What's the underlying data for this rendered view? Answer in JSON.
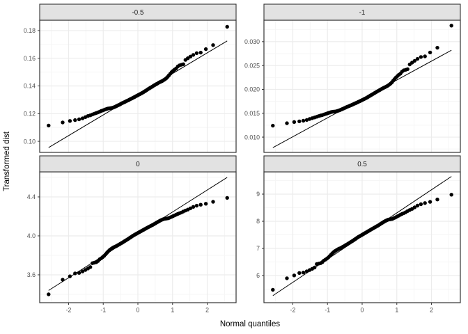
{
  "style": {
    "background": "#FFFFFF",
    "panel_background": "#FFFFFF",
    "panel_border": "#333333",
    "strip_background": "#E2E2E2",
    "strip_text_color": "#1A1A1A",
    "grid_major": "#ECECEC",
    "grid_minor": "#F5F5F5",
    "axis_text_color": "#4D4D4D",
    "axis_title_color": "#000000",
    "tick_color": "#333333",
    "point_color": "#000000",
    "line_color": "#000000"
  },
  "chart_data": {
    "type": "scatter",
    "subtype": "qq-plot-faceted",
    "title": "",
    "xlabel": "Normal quantiles",
    "ylabel": "Transformed dist",
    "legend": "none",
    "grid": "on",
    "xlim": [
      -2.833,
      2.833
    ],
    "xtick_values": [
      -2,
      -1,
      0,
      1,
      2
    ],
    "xtick_labels": [
      "-2",
      "-1",
      "0",
      "1",
      "2"
    ],
    "xminor": [
      -2.5,
      -1.5,
      -0.5,
      0.5,
      1.5,
      2.5
    ],
    "x": [
      -2.576,
      -2.17,
      -1.96,
      -1.812,
      -1.695,
      -1.598,
      -1.514,
      -1.44,
      -1.372,
      -1.311,
      -1.254,
      -1.2,
      -1.15,
      -1.103,
      -1.058,
      -1.015,
      -0.974,
      -0.935,
      -0.896,
      -0.86,
      -0.824,
      -0.789,
      -0.755,
      -0.722,
      -0.69,
      -0.659,
      -0.628,
      -0.598,
      -0.568,
      -0.539,
      -0.51,
      -0.482,
      -0.454,
      -0.426,
      -0.399,
      -0.372,
      -0.345,
      -0.319,
      -0.292,
      -0.266,
      -0.24,
      -0.215,
      -0.189,
      -0.164,
      -0.138,
      -0.113,
      -0.088,
      -0.063,
      -0.038,
      -0.013,
      0.013,
      0.038,
      0.063,
      0.088,
      0.113,
      0.138,
      0.164,
      0.189,
      0.215,
      0.24,
      0.266,
      0.292,
      0.319,
      0.345,
      0.372,
      0.399,
      0.426,
      0.454,
      0.482,
      0.51,
      0.539,
      0.568,
      0.598,
      0.628,
      0.659,
      0.69,
      0.722,
      0.755,
      0.789,
      0.824,
      0.86,
      0.896,
      0.935,
      0.974,
      1.015,
      1.058,
      1.103,
      1.15,
      1.2,
      1.254,
      1.311,
      1.372,
      1.44,
      1.514,
      1.598,
      1.695,
      1.812,
      1.96,
      2.17,
      2.576
    ],
    "panels": [
      {
        "label": "-0.5",
        "ylim": [
          0.092,
          0.1875
        ],
        "ytick_values": [
          0.1,
          0.12,
          0.14,
          0.16,
          0.18
        ],
        "ytick_labels": [
          "0.10",
          "0.12",
          "0.14",
          "0.16",
          "0.18"
        ],
        "yminor": [
          0.11,
          0.13,
          0.15,
          0.17
        ],
        "line": {
          "x1": -2.576,
          "y1": 0.0955,
          "x2": 2.576,
          "y2": 0.1725
        },
        "y": [
          0.1114,
          0.1136,
          0.1147,
          0.1153,
          0.1159,
          0.1166,
          0.1175,
          0.1183,
          0.1188,
          0.1194,
          0.12,
          0.1205,
          0.1209,
          0.1214,
          0.1219,
          0.1223,
          0.1227,
          0.1231,
          0.1234,
          0.1237,
          0.1238,
          0.1239,
          0.1241,
          0.1243,
          0.1246,
          0.1249,
          0.1253,
          0.1257,
          0.1261,
          0.1264,
          0.1268,
          0.1272,
          0.1276,
          0.1279,
          0.1282,
          0.1285,
          0.1289,
          0.1292,
          0.1295,
          0.1298,
          0.1302,
          0.1305,
          0.1308,
          0.1311,
          0.1315,
          0.1318,
          0.1321,
          0.1325,
          0.1328,
          0.1331,
          0.1335,
          0.1338,
          0.1341,
          0.1345,
          0.1348,
          0.1352,
          0.1356,
          0.136,
          0.1364,
          0.1368,
          0.1372,
          0.1377,
          0.1381,
          0.1385,
          0.1389,
          0.1393,
          0.1397,
          0.1402,
          0.1406,
          0.141,
          0.1414,
          0.1418,
          0.1423,
          0.1427,
          0.143,
          0.1434,
          0.1438,
          0.1444,
          0.145,
          0.1457,
          0.1466,
          0.1477,
          0.1488,
          0.15,
          0.1509,
          0.1518,
          0.1526,
          0.154,
          0.1549,
          0.1553,
          0.1557,
          0.1588,
          0.16,
          0.1612,
          0.1624,
          0.1637,
          0.1641,
          0.1666,
          0.1695,
          0.1827
        ]
      },
      {
        "label": "-1",
        "ylim": [
          0.0068,
          0.0345
        ],
        "ytick_values": [
          0.01,
          0.015,
          0.02,
          0.025,
          0.03
        ],
        "ytick_labels": [
          "0.010",
          "0.015",
          "0.020",
          "0.025",
          "0.030"
        ],
        "yminor": [
          0.0075,
          0.0125,
          0.0175,
          0.0225,
          0.0275,
          0.0325
        ],
        "line": {
          "x1": -2.576,
          "y1": 0.0078,
          "x2": 2.576,
          "y2": 0.0282
        },
        "y": [
          0.0124,
          0.01291,
          0.01317,
          0.0133,
          0.01343,
          0.0136,
          0.0138,
          0.01398,
          0.01412,
          0.01426,
          0.01441,
          0.01452,
          0.01462,
          0.01473,
          0.01485,
          0.01495,
          0.01506,
          0.01515,
          0.01524,
          0.0153,
          0.01533,
          0.01536,
          0.01539,
          0.01546,
          0.01553,
          0.01561,
          0.0157,
          0.0158,
          0.01589,
          0.01599,
          0.01608,
          0.01618,
          0.01628,
          0.01636,
          0.01644,
          0.01652,
          0.01661,
          0.01669,
          0.01677,
          0.01686,
          0.01694,
          0.01703,
          0.01711,
          0.0172,
          0.01728,
          0.01737,
          0.01746,
          0.01754,
          0.01763,
          0.01772,
          0.01781,
          0.0179,
          0.01799,
          0.01808,
          0.01817,
          0.01828,
          0.01839,
          0.0185,
          0.01861,
          0.01873,
          0.01883,
          0.01895,
          0.01906,
          0.01918,
          0.01929,
          0.01941,
          0.01953,
          0.01964,
          0.01976,
          0.01988,
          0.02,
          0.02012,
          0.02024,
          0.02036,
          0.02044,
          0.02057,
          0.02069,
          0.02086,
          0.02103,
          0.02124,
          0.0215,
          0.02182,
          0.02215,
          0.02249,
          0.02278,
          0.02306,
          0.02329,
          0.0237,
          0.02399,
          0.02411,
          0.02423,
          0.02523,
          0.02561,
          0.02599,
          0.02639,
          0.02679,
          0.02692,
          0.02774,
          0.02873,
          0.03337
        ]
      },
      {
        "label": "0",
        "ylim": [
          3.314,
          4.657
        ],
        "ytick_values": [
          3.6,
          4.0,
          4.4
        ],
        "ytick_labels": [
          "3.6",
          "4.0",
          "4.4"
        ],
        "yminor": [
          3.4,
          3.8,
          4.2,
          4.6
        ],
        "line": {
          "x1": -2.576,
          "y1": 3.44,
          "x2": 2.576,
          "y2": 4.6
        },
        "y": [
          3.4,
          3.55,
          3.585,
          3.615,
          3.62,
          3.635,
          3.65,
          3.665,
          3.68,
          3.72,
          3.725,
          3.73,
          3.742,
          3.76,
          3.77,
          3.782,
          3.795,
          3.81,
          3.825,
          3.84,
          3.852,
          3.862,
          3.87,
          3.878,
          3.884,
          3.89,
          3.894,
          3.9,
          3.906,
          3.912,
          3.918,
          3.924,
          3.93,
          3.936,
          3.942,
          3.948,
          3.954,
          3.96,
          3.966,
          3.972,
          3.978,
          3.984,
          3.99,
          3.996,
          4.002,
          4.008,
          4.013,
          4.018,
          4.023,
          4.028,
          4.033,
          4.038,
          4.043,
          4.048,
          4.053,
          4.058,
          4.063,
          4.068,
          4.073,
          4.078,
          4.083,
          4.088,
          4.093,
          4.098,
          4.103,
          4.108,
          4.113,
          4.118,
          4.124,
          4.13,
          4.136,
          4.142,
          4.148,
          4.154,
          4.16,
          4.165,
          4.17,
          4.174,
          4.176,
          4.178,
          4.18,
          4.184,
          4.19,
          4.196,
          4.203,
          4.21,
          4.218,
          4.225,
          4.232,
          4.24,
          4.25,
          4.26,
          4.27,
          4.283,
          4.298,
          4.31,
          4.32,
          4.33,
          4.35,
          4.39
        ]
      },
      {
        "label": "0.5",
        "ylim": [
          5.0,
          9.82
        ],
        "ytick_values": [
          6,
          7,
          8,
          9
        ],
        "ytick_labels": [
          "6",
          "7",
          "8",
          "9"
        ],
        "yminor": [
          5.5,
          6.5,
          7.5,
          8.5,
          9.5
        ],
        "line": {
          "x1": -2.576,
          "y1": 5.26,
          "x2": 2.576,
          "y2": 9.65
        },
        "y": [
          5.474,
          5.9,
          6.004,
          6.095,
          6.11,
          6.156,
          6.203,
          6.249,
          6.296,
          6.424,
          6.44,
          6.456,
          6.495,
          6.553,
          6.586,
          6.626,
          6.669,
          6.719,
          6.77,
          6.821,
          6.862,
          6.896,
          6.924,
          6.952,
          6.973,
          6.994,
          7.008,
          7.029,
          7.05,
          7.071,
          7.092,
          7.114,
          7.135,
          7.156,
          7.178,
          7.2,
          7.221,
          7.243,
          7.265,
          7.287,
          7.308,
          7.33,
          7.352,
          7.374,
          7.397,
          7.419,
          7.437,
          7.456,
          7.475,
          7.493,
          7.512,
          7.531,
          7.55,
          7.569,
          7.588,
          7.607,
          7.626,
          7.645,
          7.664,
          7.683,
          7.702,
          7.722,
          7.741,
          7.76,
          7.78,
          7.799,
          7.819,
          7.838,
          7.862,
          7.885,
          7.909,
          7.933,
          7.957,
          7.981,
          8.004,
          8.024,
          8.044,
          8.061,
          8.069,
          8.077,
          8.085,
          8.101,
          8.125,
          8.15,
          8.178,
          8.207,
          8.24,
          8.269,
          8.298,
          8.331,
          8.373,
          8.415,
          8.457,
          8.512,
          8.576,
          8.628,
          8.671,
          8.715,
          8.802,
          8.98
        ]
      }
    ]
  }
}
